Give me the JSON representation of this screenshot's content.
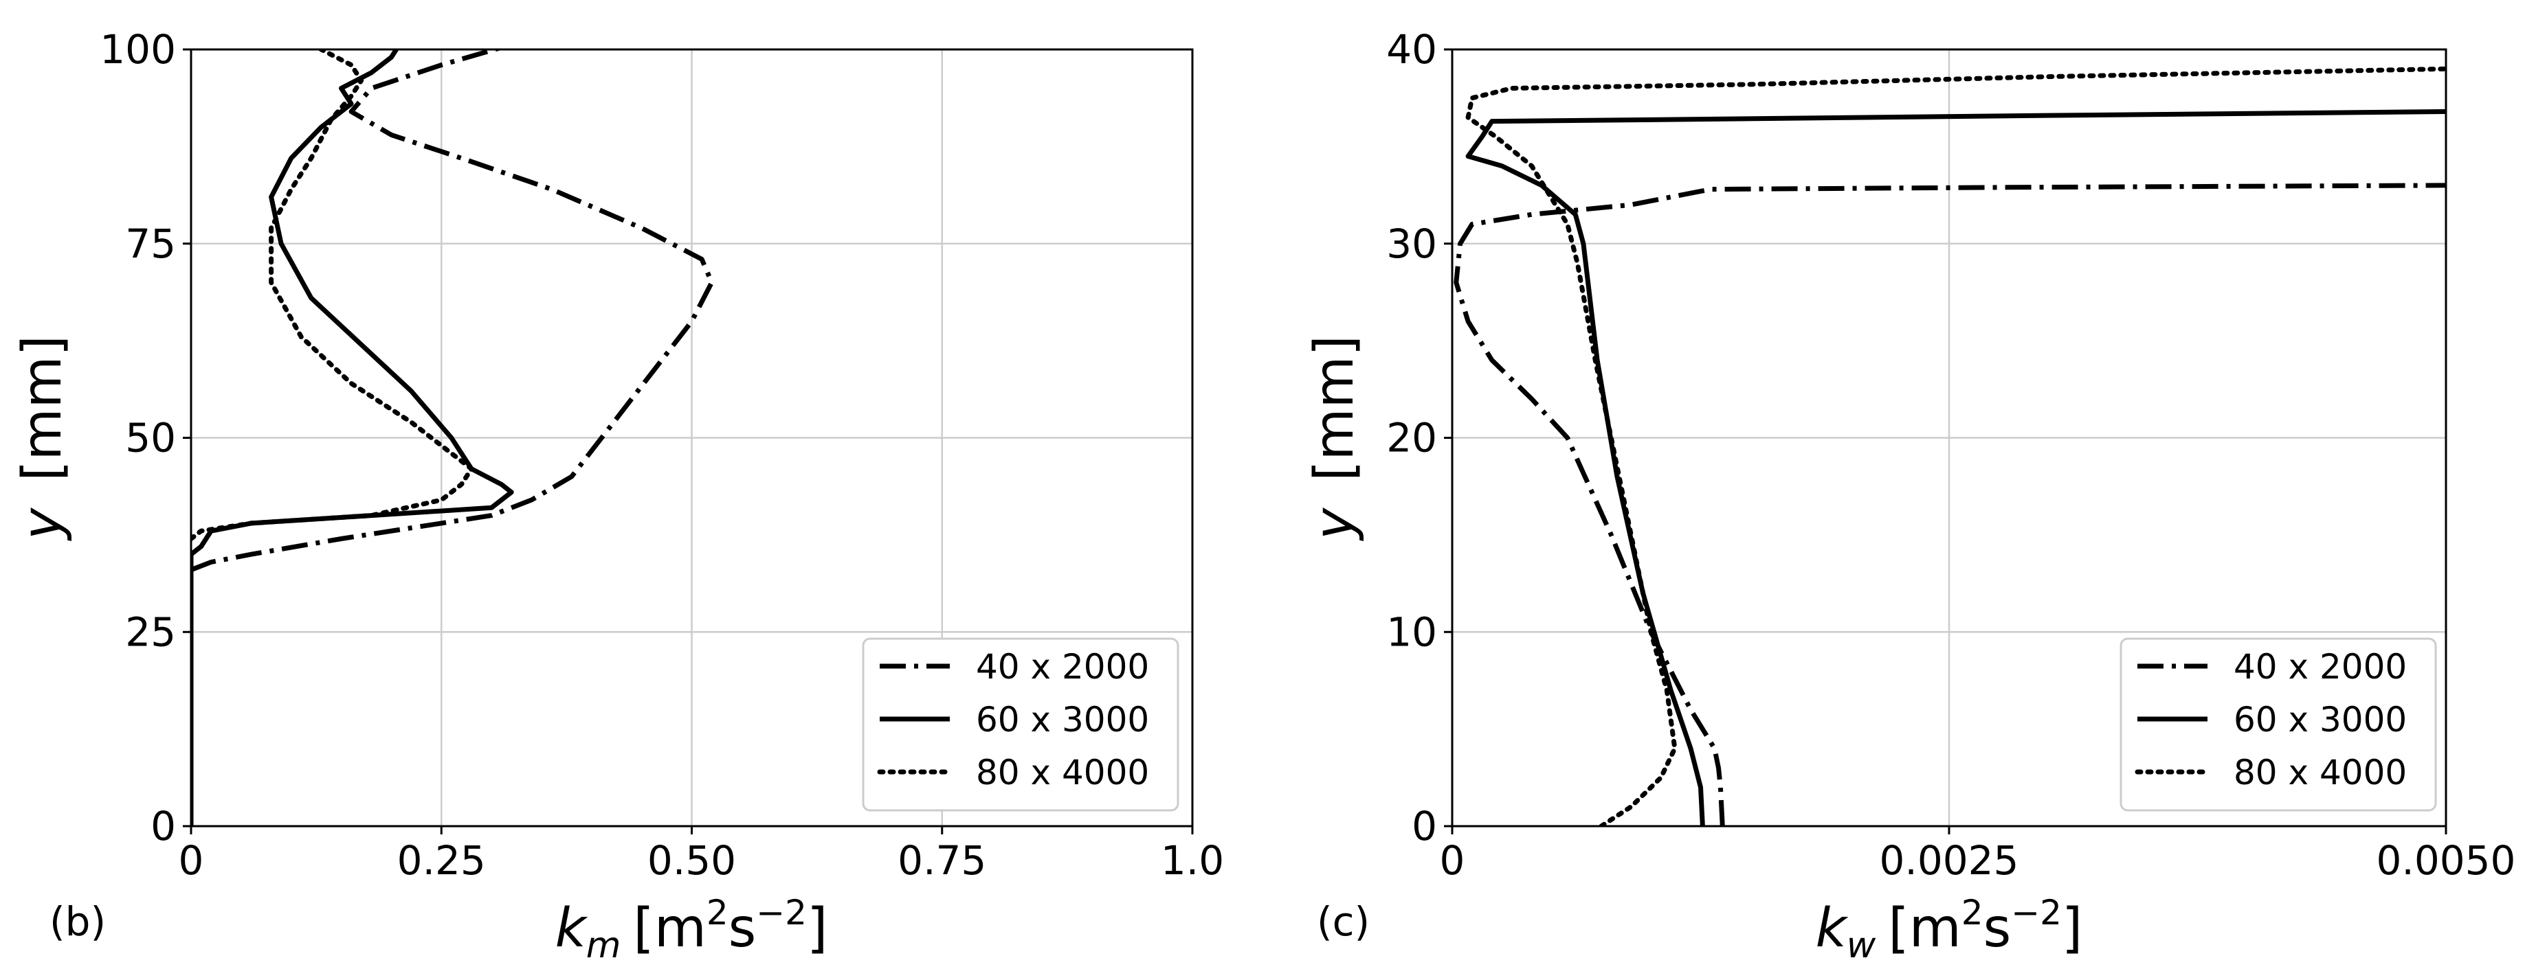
{
  "chart_data": [
    {
      "type": "line",
      "panel_label": "(b)",
      "xlabel_main": "k",
      "xlabel_sub": "m",
      "xlabel_units": "[m",
      "xlabel_units_sup": "2",
      "xlabel_units_s": "s",
      "xlabel_units_exp": "−2",
      "xlabel_units_close": "]",
      "ylabel_main": "y",
      "ylabel_units": "[mm]",
      "xlim": [
        0,
        1.0
      ],
      "ylim": [
        0,
        100
      ],
      "xticks": [
        0,
        0.25,
        0.5,
        0.75,
        1.0
      ],
      "xtick_labels": [
        "0",
        "0.25",
        "0.50",
        "0.75",
        "1.0"
      ],
      "yticks": [
        0,
        25,
        50,
        75,
        100
      ],
      "ytick_labels": [
        "0",
        "25",
        "50",
        "75",
        "100"
      ],
      "grid": true,
      "legend_position": "bottom-right",
      "series": [
        {
          "name": "40 x 2000",
          "dash": "dashdot",
          "points": [
            [
              0.0,
              33
            ],
            [
              0.02,
              34
            ],
            [
              0.06,
              35
            ],
            [
              0.15,
              37
            ],
            [
              0.3,
              40
            ],
            [
              0.34,
              42
            ],
            [
              0.38,
              45
            ],
            [
              0.41,
              50
            ],
            [
              0.44,
              55
            ],
            [
              0.47,
              60
            ],
            [
              0.5,
              65
            ],
            [
              0.52,
              70
            ],
            [
              0.51,
              73
            ],
            [
              0.45,
              77
            ],
            [
              0.36,
              82
            ],
            [
              0.27,
              86
            ],
            [
              0.2,
              89
            ],
            [
              0.16,
              92
            ],
            [
              0.18,
              95
            ],
            [
              0.25,
              98
            ],
            [
              0.33,
              101
            ]
          ]
        },
        {
          "name": "60 x 3000",
          "dash": "solid",
          "points": [
            [
              0.0,
              0
            ],
            [
              0.0,
              25
            ],
            [
              0.0,
              35
            ],
            [
              0.01,
              36
            ],
            [
              0.02,
              38
            ],
            [
              0.06,
              39
            ],
            [
              0.18,
              40
            ],
            [
              0.3,
              41
            ],
            [
              0.32,
              43
            ],
            [
              0.31,
              44
            ],
            [
              0.28,
              46
            ],
            [
              0.26,
              50
            ],
            [
              0.22,
              56
            ],
            [
              0.17,
              62
            ],
            [
              0.12,
              68
            ],
            [
              0.09,
              75
            ],
            [
              0.08,
              81
            ],
            [
              0.1,
              86
            ],
            [
              0.13,
              90
            ],
            [
              0.16,
              93
            ],
            [
              0.15,
              95
            ],
            [
              0.18,
              97
            ],
            [
              0.2,
              99
            ],
            [
              0.21,
              101
            ]
          ]
        },
        {
          "name": "80 x 4000",
          "dash": "dotted",
          "points": [
            [
              0.0,
              37
            ],
            [
              0.01,
              38
            ],
            [
              0.06,
              39
            ],
            [
              0.18,
              40
            ],
            [
              0.25,
              42
            ],
            [
              0.27,
              44
            ],
            [
              0.28,
              46
            ],
            [
              0.26,
              48
            ],
            [
              0.22,
              52
            ],
            [
              0.16,
              57
            ],
            [
              0.11,
              63
            ],
            [
              0.08,
              70
            ],
            [
              0.08,
              77
            ],
            [
              0.1,
              82
            ],
            [
              0.12,
              86
            ],
            [
              0.14,
              91
            ],
            [
              0.16,
              94
            ],
            [
              0.17,
              96
            ],
            [
              0.16,
              98
            ],
            [
              0.13,
              100
            ],
            [
              0.12,
              101
            ]
          ]
        }
      ]
    },
    {
      "type": "line",
      "panel_label": "(c)",
      "xlabel_main": "k",
      "xlabel_sub": "w",
      "xlabel_units": "[m",
      "xlabel_units_sup": "2",
      "xlabel_units_s": "s",
      "xlabel_units_exp": "−2",
      "xlabel_units_close": "]",
      "ylabel_main": "y",
      "ylabel_units": "[mm]",
      "xlim": [
        0,
        0.005
      ],
      "ylim": [
        0,
        40
      ],
      "xticks": [
        0,
        0.0025,
        0.005
      ],
      "xtick_labels": [
        "0",
        "0.0025",
        "0.0050"
      ],
      "yticks": [
        0,
        10,
        20,
        30,
        40
      ],
      "ytick_labels": [
        "0",
        "10",
        "20",
        "30",
        "40"
      ],
      "grid": true,
      "legend_position": "bottom-right",
      "series": [
        {
          "name": "40 x 2000",
          "dash": "dashdot",
          "points": [
            [
              0.00136,
              0
            ],
            [
              0.00135,
              2
            ],
            [
              0.00134,
              3
            ],
            [
              0.00132,
              4
            ],
            [
              0.0012,
              6
            ],
            [
              0.001,
              10
            ],
            [
              0.0008,
              15
            ],
            [
              0.00058,
              20
            ],
            [
              0.0004,
              22
            ],
            [
              0.0002,
              24
            ],
            [
              8e-05,
              26
            ],
            [
              2e-05,
              28
            ],
            [
              4e-05,
              30
            ],
            [
              0.0001,
              31
            ],
            [
              0.0004,
              31.5
            ],
            [
              0.0009,
              32
            ],
            [
              0.0013,
              32.8
            ],
            [
              0.0028,
              32.9
            ],
            [
              0.005,
              33
            ]
          ]
        },
        {
          "name": "60 x 3000",
          "dash": "solid",
          "points": [
            [
              0.00126,
              0
            ],
            [
              0.00125,
              2
            ],
            [
              0.0012,
              4
            ],
            [
              0.0011,
              7
            ],
            [
              0.00096,
              12
            ],
            [
              0.00083,
              18
            ],
            [
              0.00073,
              24
            ],
            [
              0.00066,
              30
            ],
            [
              0.00062,
              31.5
            ],
            [
              0.00045,
              33
            ],
            [
              0.00025,
              34
            ],
            [
              8e-05,
              34.5
            ],
            [
              0.00015,
              35.5
            ],
            [
              0.0002,
              36.3
            ],
            [
              0.0012,
              36.4
            ],
            [
              0.003,
              36.6
            ],
            [
              0.005,
              36.8
            ]
          ]
        },
        {
          "name": "80 x 4000",
          "dash": "dotted",
          "points": [
            [
              0.00075,
              0
            ],
            [
              0.0009,
              1
            ],
            [
              0.00105,
              2.5
            ],
            [
              0.00112,
              4
            ],
            [
              0.00108,
              7
            ],
            [
              0.001,
              10
            ],
            [
              0.00092,
              14
            ],
            [
              0.00082,
              19
            ],
            [
              0.00072,
              24
            ],
            [
              0.00063,
              29
            ],
            [
              0.00058,
              31
            ],
            [
              0.0004,
              34
            ],
            [
              0.00022,
              35.5
            ],
            [
              8e-05,
              36.5
            ],
            [
              0.0001,
              37.5
            ],
            [
              0.0003,
              38
            ],
            [
              0.0015,
              38.2
            ],
            [
              0.003,
              38.6
            ],
            [
              0.005,
              39
            ]
          ]
        }
      ]
    }
  ]
}
